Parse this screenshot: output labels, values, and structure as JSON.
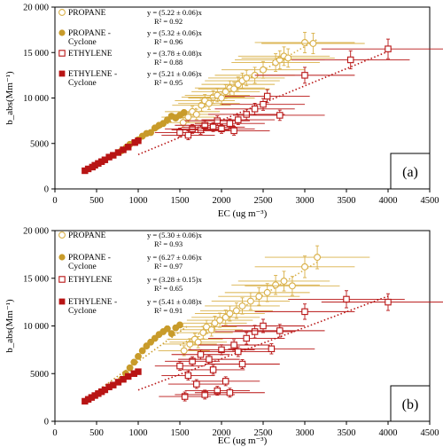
{
  "colors": {
    "propane": "#d9b048",
    "propane_cyclone": "#c89b2a",
    "ethylene": "#b81414",
    "ethylene_cyclone": "#b81414"
  },
  "chart_data": [
    {
      "type": "scatter",
      "panel_label": "(a)",
      "xlabel": "EC (ug m⁻³)",
      "ylabel": "b_abs(Mm⁻¹)",
      "xlim": [
        0,
        4500
      ],
      "ylim": [
        0,
        20000
      ],
      "xticks": [
        0,
        500,
        1000,
        1500,
        2000,
        2500,
        3000,
        3500,
        4000,
        4500
      ],
      "yticks": [
        0,
        5000,
        10000,
        15000,
        20000
      ],
      "ytick_labels": [
        "0",
        "5000",
        "10 000",
        "15 000",
        "20 000"
      ],
      "legend_position": "top-left",
      "grid": false,
      "series": [
        {
          "name": "PROPANE",
          "marker": "open-circle",
          "color_key": "propane",
          "equation": "y = (5.22 ± 0.06)x",
          "r2": "R² = 0.92",
          "fit_x": [
            1500,
            3150
          ],
          "fit_y": [
            7830,
            16443
          ],
          "points": [
            [
              1540,
              7300
            ],
            [
              1600,
              7900
            ],
            [
              1650,
              8500
            ],
            [
              1700,
              8200
            ],
            [
              1760,
              9200
            ],
            [
              1800,
              9700
            ],
            [
              1850,
              9400
            ],
            [
              1900,
              10100
            ],
            [
              1950,
              10300
            ],
            [
              2000,
              10000
            ],
            [
              2050,
              10700
            ],
            [
              2100,
              11100
            ],
            [
              2150,
              11000
            ],
            [
              2200,
              11500
            ],
            [
              2250,
              11900
            ],
            [
              2300,
              12200
            ],
            [
              2400,
              12500
            ],
            [
              2500,
              13100
            ],
            [
              2650,
              13900
            ],
            [
              2700,
              14200
            ],
            [
              2750,
              14600
            ],
            [
              2800,
              14400
            ],
            [
              3000,
              16100
            ],
            [
              3100,
              16000
            ]
          ]
        },
        {
          "name": "PROPANE - Cyclone",
          "marker": "filled-circle",
          "color_key": "propane_cyclone",
          "equation": "y = (5.32 ± 0.06)x",
          "r2": "R² = 0.96",
          "fit_x": [
            500,
            1600
          ],
          "fit_y": [
            2660,
            8512
          ],
          "points": [
            [
              800,
              4200
            ],
            [
              860,
              4600
            ],
            [
              900,
              4900
            ],
            [
              950,
              5100
            ],
            [
              1000,
              5400
            ],
            [
              1050,
              5800
            ],
            [
              1100,
              6100
            ],
            [
              1150,
              6200
            ],
            [
              1200,
              6700
            ],
            [
              1250,
              7000
            ],
            [
              1300,
              7200
            ],
            [
              1350,
              7600
            ],
            [
              1400,
              8000
            ],
            [
              1450,
              7800
            ],
            [
              1500,
              8100
            ],
            [
              1550,
              8400
            ]
          ]
        },
        {
          "name": "ETHYLENE",
          "marker": "open-square",
          "color_key": "ethylene",
          "equation": "y = (3.78 ± 0.08)x",
          "r2": "R² = 0.88",
          "fit_x": [
            1000,
            4000
          ],
          "fit_y": [
            3780,
            15120
          ],
          "points": [
            [
              1500,
              6200
            ],
            [
              1600,
              5900
            ],
            [
              1650,
              6600
            ],
            [
              1750,
              6500
            ],
            [
              1800,
              7000
            ],
            [
              1900,
              6800
            ],
            [
              1950,
              7500
            ],
            [
              2000,
              6600
            ],
            [
              2100,
              7200
            ],
            [
              2150,
              6400
            ],
            [
              2200,
              7600
            ],
            [
              2300,
              8200
            ],
            [
              2400,
              8800
            ],
            [
              2500,
              9300
            ],
            [
              2550,
              10200
            ],
            [
              2700,
              8100
            ],
            [
              3000,
              12500
            ],
            [
              3550,
              14200
            ],
            [
              4000,
              15400
            ]
          ]
        },
        {
          "name": "ETHYLENE - Cyclone",
          "marker": "filled-square",
          "color_key": "ethylene_cyclone",
          "equation": "y = (5.21 ± 0.06)x",
          "r2": "R² = 0.95",
          "fit_x": [
            350,
            1000
          ],
          "fit_y": [
            1824,
            5210
          ],
          "points": [
            [
              360,
              2000
            ],
            [
              400,
              2200
            ],
            [
              450,
              2400
            ],
            [
              480,
              2600
            ],
            [
              520,
              2800
            ],
            [
              560,
              3000
            ],
            [
              600,
              3200
            ],
            [
              650,
              3500
            ],
            [
              700,
              3700
            ],
            [
              760,
              4000
            ],
            [
              820,
              4300
            ],
            [
              880,
              4600
            ],
            [
              960,
              5100
            ],
            [
              1000,
              5300
            ]
          ]
        }
      ]
    },
    {
      "type": "scatter",
      "panel_label": "(b)",
      "xlabel": "EC (ug m⁻³)",
      "ylabel": "b_abs(Mm⁻¹)",
      "xlim": [
        0,
        4500
      ],
      "ylim": [
        0,
        20000
      ],
      "xticks": [
        0,
        500,
        1000,
        1500,
        2000,
        2500,
        3000,
        3500,
        4000,
        4500
      ],
      "yticks": [
        0,
        5000,
        10000,
        15000,
        20000
      ],
      "ytick_labels": [
        "0",
        "5000",
        "10 000",
        "15 000",
        "20 000"
      ],
      "legend_position": "top-left",
      "grid": false,
      "series": [
        {
          "name": "PROPANE",
          "marker": "open-circle",
          "color_key": "propane",
          "equation": "y = (5.30 ± 0.06)x",
          "r2": "R² = 0.93",
          "fit_x": [
            1500,
            3150
          ],
          "fit_y": [
            7950,
            16695
          ],
          "points": [
            [
              1550,
              7400
            ],
            [
              1620,
              8100
            ],
            [
              1680,
              8600
            ],
            [
              1720,
              8300
            ],
            [
              1780,
              9300
            ],
            [
              1820,
              9900
            ],
            [
              1880,
              9600
            ],
            [
              1920,
              10300
            ],
            [
              1980,
              10600
            ],
            [
              2050,
              10900
            ],
            [
              2100,
              11300
            ],
            [
              2180,
              11600
            ],
            [
              2250,
              12100
            ],
            [
              2350,
              12600
            ],
            [
              2450,
              13100
            ],
            [
              2550,
              13500
            ],
            [
              2650,
              14300
            ],
            [
              2750,
              14700
            ],
            [
              2850,
              14200
            ],
            [
              3000,
              16200
            ],
            [
              3150,
              17200
            ]
          ]
        },
        {
          "name": "PROPANE - Cyclone",
          "marker": "filled-circle",
          "color_key": "propane_cyclone",
          "equation": "y = (6.27 ± 0.06)x",
          "r2": "R² = 0.97",
          "fit_x": [
            500,
            1600
          ],
          "fit_y": [
            3135,
            10032
          ],
          "points": [
            [
              800,
              4400
            ],
            [
              850,
              5000
            ],
            [
              900,
              5600
            ],
            [
              950,
              6200
            ],
            [
              1000,
              6800
            ],
            [
              1050,
              7400
            ],
            [
              1100,
              7900
            ],
            [
              1150,
              8300
            ],
            [
              1200,
              8700
            ],
            [
              1250,
              9100
            ],
            [
              1300,
              9400
            ],
            [
              1350,
              9700
            ],
            [
              1400,
              9200
            ],
            [
              1450,
              9800
            ],
            [
              1500,
              10100
            ]
          ]
        },
        {
          "name": "ETHYLENE",
          "marker": "open-square",
          "color_key": "ethylene",
          "equation": "y = (3.28 ± 0.15)x",
          "r2": "R² = 0.65",
          "fit_x": [
            1000,
            4000
          ],
          "fit_y": [
            3280,
            13120
          ],
          "points": [
            [
              1500,
              5800
            ],
            [
              1560,
              2600
            ],
            [
              1600,
              4800
            ],
            [
              1650,
              6300
            ],
            [
              1700,
              3900
            ],
            [
              1750,
              7000
            ],
            [
              1800,
              2800
            ],
            [
              1850,
              6500
            ],
            [
              1900,
              5400
            ],
            [
              1950,
              3200
            ],
            [
              2000,
              7500
            ],
            [
              2050,
              4200
            ],
            [
              2100,
              3000
            ],
            [
              2150,
              8000
            ],
            [
              2200,
              7300
            ],
            [
              2250,
              6000
            ],
            [
              2300,
              8700
            ],
            [
              2400,
              9400
            ],
            [
              2500,
              10000
            ],
            [
              2600,
              7600
            ],
            [
              2700,
              9500
            ],
            [
              3000,
              11500
            ],
            [
              3500,
              12800
            ],
            [
              4000,
              12500
            ]
          ]
        },
        {
          "name": "ETHYLENE - Cyclone",
          "marker": "filled-square",
          "color_key": "ethylene_cyclone",
          "equation": "y = (5.41 ± 0.08)x",
          "r2": "R² = 0.91",
          "fit_x": [
            350,
            1000
          ],
          "fit_y": [
            1894,
            5410
          ],
          "points": [
            [
              360,
              2100
            ],
            [
              400,
              2300
            ],
            [
              440,
              2500
            ],
            [
              480,
              2700
            ],
            [
              520,
              2900
            ],
            [
              560,
              3100
            ],
            [
              600,
              3300
            ],
            [
              650,
              3600
            ],
            [
              700,
              3800
            ],
            [
              760,
              4100
            ],
            [
              820,
              4400
            ],
            [
              880,
              4700
            ],
            [
              950,
              5000
            ],
            [
              1000,
              5200
            ]
          ]
        }
      ]
    }
  ]
}
